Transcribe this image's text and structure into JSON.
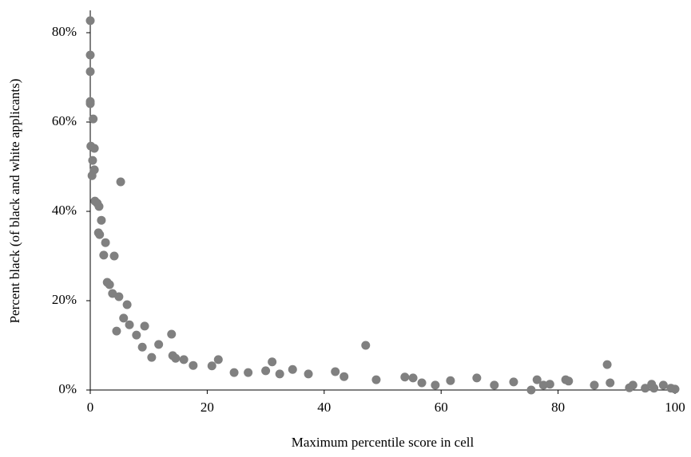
{
  "chart_data": {
    "type": "scatter",
    "xlabel": "Maximum percentile score in cell",
    "ylabel": "Percent black (of black and white applicants)",
    "color": "#808080",
    "xlim": [
      0,
      100
    ],
    "xticks": [
      0,
      20,
      40,
      60,
      80,
      100
    ],
    "ylim": [
      0,
      85
    ],
    "yticks": [
      {
        "value": 0,
        "label": "0%"
      },
      {
        "value": 20,
        "label": "20%"
      },
      {
        "value": 40,
        "label": "40%"
      },
      {
        "value": 60,
        "label": "60%"
      },
      {
        "value": 80,
        "label": "80%"
      }
    ],
    "x": [
      0,
      0,
      0,
      0,
      0,
      0.5,
      0.1,
      0.4,
      0.7,
      0.7,
      0.3,
      0.8,
      1.2,
      1.5,
      1.9,
      1.4,
      1.6,
      2.6,
      2.3,
      4.1,
      5.2,
      2.9,
      3.3,
      3.8,
      4.9,
      6.3,
      4.5,
      5.7,
      6.7,
      7.9,
      9.3,
      8.9,
      10.5,
      11.7,
      13.9,
      14.1,
      14.6,
      16,
      17.6,
      20.8,
      21.9,
      24.6,
      27,
      30,
      31.1,
      32.4,
      34.6,
      37.3,
      41.9,
      43.4,
      47.1,
      48.9,
      53.8,
      55.2,
      56.7,
      59,
      61.6,
      66.1,
      69.1,
      72.4,
      75.4,
      76.4,
      77.5,
      78.6,
      81.3,
      81.8,
      86.2,
      88.4,
      88.9,
      92.2,
      92.8,
      94.9,
      96,
      96.4,
      98,
      99.3,
      100
    ],
    "values": [
      82.7,
      75,
      71.3,
      64.6,
      64.1,
      60.7,
      54.6,
      51.4,
      54.1,
      49.3,
      48,
      42.3,
      41.8,
      41.1,
      38,
      35.2,
      34.8,
      33,
      30.2,
      30,
      46.6,
      24.1,
      23.6,
      21.6,
      20.9,
      19.1,
      13.2,
      16.1,
      14.6,
      12.3,
      14.3,
      9.6,
      7.3,
      10.2,
      12.5,
      7.7,
      7.1,
      6.8,
      5.5,
      5.4,
      6.8,
      3.9,
      3.9,
      4.3,
      6.3,
      3.6,
      4.6,
      3.6,
      4.1,
      3,
      10,
      2.3,
      2.9,
      2.7,
      1.6,
      1.1,
      2.1,
      2.7,
      1.1,
      1.8,
      0,
      2.3,
      1.1,
      1.3,
      2.3,
      2,
      1.1,
      5.7,
      1.6,
      0.5,
      1.1,
      0.4,
      1.3,
      0.4,
      1.1,
      0.4,
      0.2
    ]
  }
}
